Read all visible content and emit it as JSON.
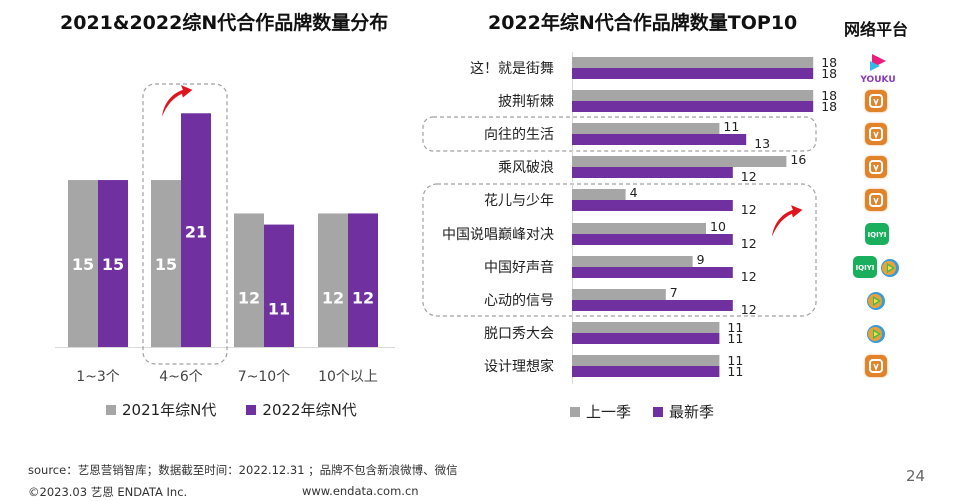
{
  "page": {
    "page_number": "24",
    "source_text": "source：艺恩营销智库；数据截至时间：2022.12.31 ；品牌不包含新浪微博、微信",
    "copyright": "©2023.03 艺恩 ENDATA Inc.",
    "website": "www.endata.com.cn"
  },
  "colors": {
    "grey": "#a6a6a6",
    "purple": "#7030a0",
    "arrow": "#e0141e",
    "dash_box": "#a0a0a0"
  },
  "platform_column": {
    "title": "网络平台",
    "platforms": [
      {
        "show": "这！就是街舞",
        "icons": [
          "youku-icon"
        ],
        "label": "YOUKU"
      },
      {
        "show": "披荆斩棘",
        "icons": [
          "mango-tv-icon"
        ]
      },
      {
        "show": "向往的生活",
        "icons": [
          "mango-tv-icon"
        ]
      },
      {
        "show": "乘风破浪",
        "icons": [
          "mango-tv-icon"
        ]
      },
      {
        "show": "花儿与少年",
        "icons": [
          "mango-tv-icon"
        ]
      },
      {
        "show": "中国说唱巅峰对决",
        "icons": [
          "iqiyi-icon"
        ],
        "label": "iQIYI"
      },
      {
        "show": "中国好声音",
        "icons": [
          "iqiyi-icon",
          "tencent-video-icon"
        ],
        "label": "iQIYI"
      },
      {
        "show": "心动的信号",
        "icons": [
          "tencent-video-icon"
        ]
      },
      {
        "show": "脱口秀大会",
        "icons": [
          "tencent-video-icon"
        ]
      },
      {
        "show": "设计理想家",
        "icons": [
          "mango-tv-icon"
        ]
      }
    ]
  },
  "chart_data": [
    {
      "type": "bar",
      "title": "2021&2022综N代合作品牌数量分布",
      "xlabel": "",
      "ylabel": "",
      "categories": [
        "1~3个",
        "4~6个",
        "7~10个",
        "10个以上"
      ],
      "series": [
        {
          "name": "2021年综N代",
          "color": "#a6a6a6",
          "values": [
            15,
            15,
            12,
            12
          ]
        },
        {
          "name": "2022年综N代",
          "color": "#7030a0",
          "values": [
            15,
            21,
            11,
            12
          ]
        }
      ],
      "ylim": [
        0,
        22
      ],
      "grid": false,
      "legend": "bottom",
      "highlight": {
        "category": "4~6个",
        "annotation": "up-arrow"
      }
    },
    {
      "type": "bar",
      "orientation": "horizontal",
      "title": "2022年综N代合作品牌数量TOP10",
      "xlabel": "",
      "ylabel": "",
      "categories": [
        "这！就是街舞",
        "披荆斩棘",
        "向往的生活",
        "乘风破浪",
        "花儿与少年",
        "中国说唱巅峰对决",
        "中国好声音",
        "心动的信号",
        "脱口秀大会",
        "设计理想家"
      ],
      "series": [
        {
          "name": "上一季",
          "color": "#a6a6a6",
          "values": [
            18,
            18,
            11,
            16,
            4,
            10,
            9,
            7,
            11,
            11
          ]
        },
        {
          "name": "最新季",
          "color": "#7030a0",
          "values": [
            18,
            18,
            13,
            12,
            12,
            12,
            12,
            12,
            11,
            11
          ]
        }
      ],
      "xlim": [
        0,
        18
      ],
      "grid": false,
      "legend": "bottom",
      "highlight_groups": [
        {
          "categories": [
            "向往的生活"
          ]
        },
        {
          "categories": [
            "花儿与少年",
            "中国说唱巅峰对决",
            "中国好声音",
            "心动的信号"
          ],
          "annotation": "up-arrow"
        }
      ]
    }
  ]
}
